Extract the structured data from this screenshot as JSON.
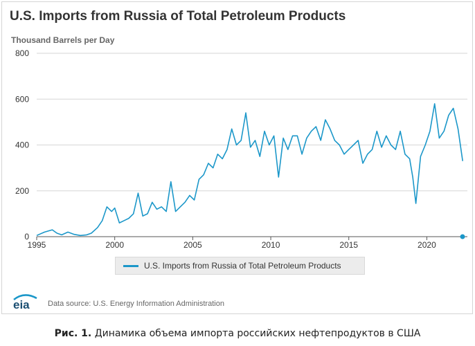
{
  "chart_data": {
    "type": "line",
    "title": "U.S. Imports from Russia of Total Petroleum Products",
    "ylabel": "Thousand Barrels per Day",
    "xlabel": "",
    "ylim": [
      0,
      800
    ],
    "yticks": [
      0,
      200,
      400,
      600,
      800
    ],
    "xlim": [
      1995,
      2022.5
    ],
    "xticks": [
      1995,
      2000,
      2005,
      2010,
      2015,
      2020
    ],
    "grid": true,
    "legend_position": "bottom",
    "series": [
      {
        "name": "U.S. Imports from Russia of Total Petroleum Products",
        "color": "#1b97c9",
        "x": [
          1995.0,
          1995.5,
          1996.0,
          1996.3,
          1996.6,
          1997.0,
          1997.4,
          1997.8,
          1998.2,
          1998.5,
          1998.9,
          1999.2,
          1999.5,
          1999.8,
          2000.0,
          2000.3,
          2000.6,
          2000.9,
          2001.2,
          2001.5,
          2001.8,
          2002.1,
          2002.4,
          2002.7,
          2003.0,
          2003.3,
          2003.6,
          2003.9,
          2004.2,
          2004.5,
          2004.8,
          2005.1,
          2005.4,
          2005.7,
          2006.0,
          2006.3,
          2006.6,
          2006.9,
          2007.2,
          2007.5,
          2007.8,
          2008.1,
          2008.4,
          2008.7,
          2009.0,
          2009.3,
          2009.6,
          2009.9,
          2010.2,
          2010.5,
          2010.8,
          2011.1,
          2011.4,
          2011.7,
          2012.0,
          2012.3,
          2012.6,
          2012.9,
          2013.2,
          2013.5,
          2013.8,
          2014.1,
          2014.4,
          2014.7,
          2015.0,
          2015.3,
          2015.6,
          2015.9,
          2016.2,
          2016.5,
          2016.8,
          2017.1,
          2017.4,
          2017.7,
          2018.0,
          2018.3,
          2018.6,
          2018.9,
          2019.1,
          2019.3,
          2019.6,
          2019.9,
          2020.2,
          2020.5,
          2020.8,
          2021.1,
          2021.4,
          2021.7,
          2022.0,
          2022.3
        ],
        "values": [
          5,
          20,
          30,
          15,
          8,
          20,
          10,
          5,
          8,
          15,
          40,
          70,
          130,
          110,
          125,
          60,
          70,
          80,
          100,
          190,
          90,
          100,
          150,
          120,
          130,
          110,
          240,
          110,
          130,
          150,
          180,
          160,
          250,
          270,
          320,
          300,
          360,
          340,
          380,
          470,
          400,
          420,
          540,
          390,
          420,
          350,
          460,
          400,
          440,
          260,
          430,
          380,
          440,
          440,
          360,
          430,
          460,
          480,
          420,
          510,
          470,
          420,
          400,
          360,
          380,
          400,
          420,
          320,
          360,
          380,
          460,
          390,
          440,
          400,
          380,
          460,
          360,
          340,
          260,
          145,
          350,
          400,
          460,
          580,
          430,
          460,
          530,
          560,
          470,
          330
        ]
      }
    ]
  },
  "legend": {
    "label": "U.S. Imports from Russia of Total Petroleum Products"
  },
  "source": {
    "text": "Data source: U.S. Energy Information Administration"
  },
  "logo": {
    "text": "eia"
  },
  "caption": {
    "prefix": "Рис. 1.",
    "text": " Динамика объема импорта российских нефтепродуктов в США"
  }
}
